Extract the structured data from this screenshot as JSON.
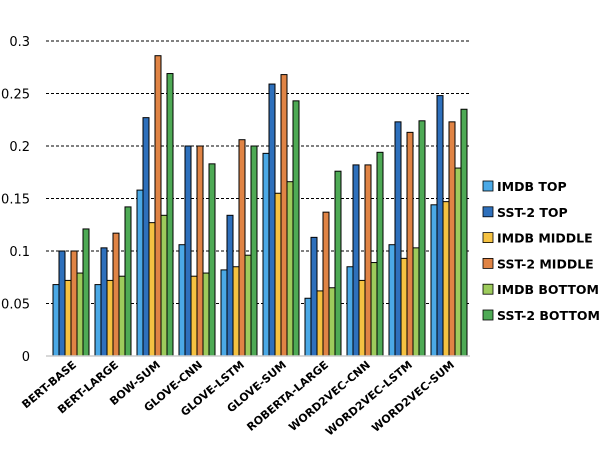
{
  "chart_data": {
    "type": "bar",
    "categories": [
      "BERT-BASE",
      "BERT-LARGE",
      "BOW-SUM",
      "GLOVE-CNN",
      "GLOVE-LSTM",
      "GLOVE-SUM",
      "ROBERTA-LARGE",
      "WORD2VEC-CNN",
      "WORD2VEC-LSTM",
      "WORD2VEC-SUM"
    ],
    "series": [
      {
        "name": "IMDB TOP",
        "color": "#4BA9E6",
        "values": [
          0.068,
          0.068,
          0.158,
          0.106,
          0.082,
          0.193,
          0.055,
          0.085,
          0.106,
          0.144
        ]
      },
      {
        "name": "SST-2 TOP",
        "color": "#2E70BC",
        "values": [
          0.1,
          0.103,
          0.227,
          0.2,
          0.134,
          0.259,
          0.113,
          0.182,
          0.223,
          0.248
        ]
      },
      {
        "name": "IMDB MIDDLE",
        "color": "#F5C242",
        "values": [
          0.072,
          0.072,
          0.127,
          0.076,
          0.085,
          0.155,
          0.062,
          0.072,
          0.093,
          0.147
        ]
      },
      {
        "name": "SST-2 MIDDLE",
        "color": "#E08445",
        "values": [
          0.1,
          0.117,
          0.286,
          0.2,
          0.206,
          0.268,
          0.137,
          0.182,
          0.213,
          0.223
        ]
      },
      {
        "name": "IMDB BOTTOM",
        "color": "#9DCB5C",
        "values": [
          0.079,
          0.076,
          0.134,
          0.079,
          0.096,
          0.166,
          0.065,
          0.089,
          0.103,
          0.179
        ]
      },
      {
        "name": "SST-2 BOTTOM",
        "color": "#4EAA55",
        "values": [
          0.121,
          0.142,
          0.269,
          0.183,
          0.2,
          0.243,
          0.176,
          0.194,
          0.224,
          0.235
        ]
      }
    ],
    "yticks": [
      "0",
      "0.05",
      "0.1",
      "0.15",
      "0.2",
      "0.25",
      "0.3"
    ],
    "ylim": [
      0,
      0.3
    ],
    "grid": true,
    "legend": "right"
  }
}
